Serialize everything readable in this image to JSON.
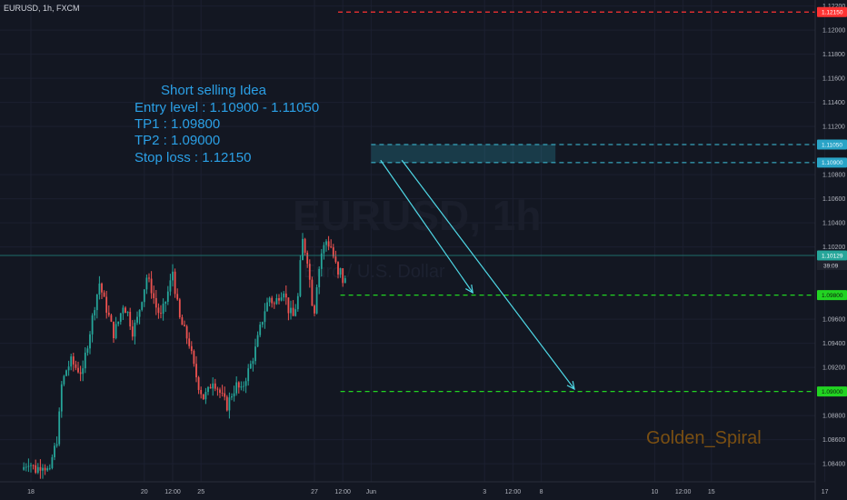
{
  "header": {
    "symbol": "EURUSD, 1h, FXCM"
  },
  "watermark": {
    "symbol": "EURUSD, 1h",
    "description": "Euro / U.S. Dollar"
  },
  "idea": {
    "title": "Short selling Idea",
    "entry": "Entry level : 1.10900 - 1.11050",
    "tp1": "TP1 : 1.09800",
    "tp2": "TP2 : 1.09000",
    "stop": "Stop loss : 1.12150"
  },
  "author": "Golden_Spiral",
  "countdown": "39:09",
  "colors": {
    "background": "#131722",
    "up": "#26a69a",
    "down": "#ef5350",
    "stop": "#ff3333",
    "entry": "#3fc5e0",
    "target": "#22d422",
    "current": "#26a69a",
    "arrow": "#4fd8e6",
    "idea_text": "#2ba0e6",
    "author": "#7a4f12"
  },
  "chart_data": {
    "type": "candlestick",
    "y_axis": {
      "min": 1.0825,
      "max": 1.1225,
      "ticks": [
        "1.12200",
        "1.12000",
        "1.11800",
        "1.11600",
        "1.11400",
        "1.11200",
        "1.10800",
        "1.10600",
        "1.10400",
        "1.10200",
        "1.09600",
        "1.09400",
        "1.09200",
        "1.08800",
        "1.08600",
        "1.08400"
      ]
    },
    "x_axis": {
      "ticks": [
        {
          "label": "18",
          "t": 0
        },
        {
          "label": "20",
          "t": 48
        },
        {
          "label": "12:00",
          "t": 60
        },
        {
          "label": "25",
          "t": 72
        },
        {
          "label": "27",
          "t": 120
        },
        {
          "label": "12:00",
          "t": 132
        },
        {
          "label": "Jun",
          "t": 144
        },
        {
          "label": "3",
          "t": 192
        },
        {
          "label": "12:00",
          "t": 204
        },
        {
          "label": "8",
          "t": 216
        },
        {
          "label": "10",
          "t": 264
        },
        {
          "label": "12:00",
          "t": 276
        },
        {
          "label": "15",
          "t": 288
        },
        {
          "label": "17",
          "t": 336
        }
      ]
    },
    "price_points": [
      [
        -3,
        1.0835
      ],
      [
        0,
        1.0842
      ],
      [
        3,
        1.0835
      ],
      [
        6,
        1.084
      ],
      [
        9,
        1.0832
      ],
      [
        10,
        1.0845
      ],
      [
        12,
        1.086
      ],
      [
        13,
        1.088
      ],
      [
        14,
        1.0905
      ],
      [
        16,
        1.0918
      ],
      [
        18,
        1.0925
      ],
      [
        20,
        1.092
      ],
      [
        23,
        1.0915
      ],
      [
        24,
        1.093
      ],
      [
        26,
        1.095
      ],
      [
        28,
        1.0972
      ],
      [
        30,
        1.099
      ],
      [
        32,
        1.0975
      ],
      [
        34,
        1.0962
      ],
      [
        36,
        1.0948
      ],
      [
        38,
        1.0958
      ],
      [
        40,
        1.0972
      ],
      [
        42,
        1.0965
      ],
      [
        44,
        1.095
      ],
      [
        46,
        1.096
      ],
      [
        48,
        1.0978
      ],
      [
        50,
        1.0995
      ],
      [
        52,
        1.0985
      ],
      [
        54,
        1.097
      ],
      [
        56,
        1.0962
      ],
      [
        58,
        1.0975
      ],
      [
        60,
        1.099
      ],
      [
        61,
        1.1
      ],
      [
        62,
        1.0985
      ],
      [
        63,
        1.0972
      ],
      [
        64,
        1.096
      ],
      [
        66,
        1.095
      ],
      [
        68,
        1.094
      ],
      [
        70,
        1.092
      ],
      [
        72,
        1.0905
      ],
      [
        74,
        1.0895
      ],
      [
        76,
        1.09
      ],
      [
        78,
        1.091
      ],
      [
        80,
        1.0903
      ],
      [
        82,
        1.0895
      ],
      [
        84,
        1.0888
      ],
      [
        86,
        1.0898
      ],
      [
        88,
        1.0905
      ],
      [
        90,
        1.09
      ],
      [
        92,
        1.0912
      ],
      [
        94,
        1.0922
      ],
      [
        96,
        1.0935
      ],
      [
        98,
        1.0952
      ],
      [
        100,
        1.0968
      ],
      [
        102,
        1.0978
      ],
      [
        104,
        1.0972
      ],
      [
        106,
        1.098
      ],
      [
        108,
        1.0985
      ],
      [
        110,
        1.0968
      ],
      [
        112,
        1.0962
      ],
      [
        114,
        1.0978
      ],
      [
        115,
        1.1005
      ],
      [
        116,
        1.1025
      ],
      [
        118,
        1.101
      ],
      [
        120,
        1.0975
      ],
      [
        121,
        1.0968
      ],
      [
        122,
        1.099
      ],
      [
        124,
        1.1015
      ],
      [
        126,
        1.1025
      ],
      [
        128,
        1.102
      ],
      [
        129,
        1.1012
      ],
      [
        130,
        1.1005
      ],
      [
        131,
        1.0995
      ],
      [
        132,
        1.1
      ],
      [
        133,
        1.0992
      ]
    ],
    "levels": {
      "stop_loss": 1.1215,
      "entry_high": 1.1105,
      "entry_low": 1.109,
      "current": 1.10129,
      "tp1": 1.098,
      "tp2": 1.09
    },
    "arrows": [
      {
        "from": [
          148,
          1.1092
        ],
        "to": [
          187,
          1.0982
        ]
      },
      {
        "from": [
          157,
          1.1092
        ],
        "to": [
          230,
          1.0902
        ]
      }
    ]
  }
}
